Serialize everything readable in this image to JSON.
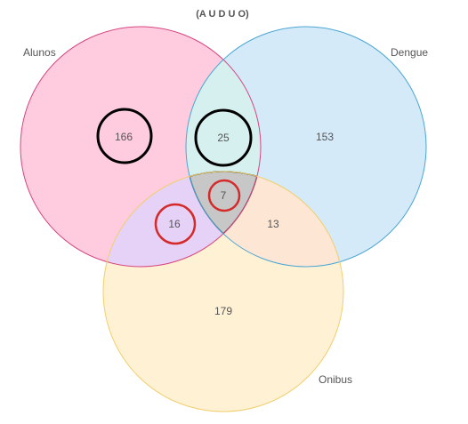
{
  "title": "(A U D U O)",
  "sets": {
    "alunos": {
      "label": "Alunos",
      "fill": "#ffccdf",
      "stroke": "#d6457f"
    },
    "dengue": {
      "label": "Dengue",
      "fill": "#d4eaf8",
      "stroke": "#4aa6d4"
    },
    "onibus": {
      "label": "Onibus",
      "fill": "#fff1d4",
      "stroke": "#f0cf6e"
    }
  },
  "regions": {
    "alunos_only": "166",
    "alunos_dengue": "25",
    "dengue_only": "153",
    "all_three": "7",
    "alunos_onibus": "16",
    "dengue_onibus": "13",
    "onibus_only": "179"
  },
  "colors": {
    "alunos_dengue_fill": "#d6f0ef",
    "alunos_onibus_fill": "#e7d2f7",
    "dengue_onibus_fill": "#fde6d4",
    "center_fill": "#c7c7c7",
    "highlight_black": "#000000",
    "highlight_red": "#d42a2a"
  }
}
